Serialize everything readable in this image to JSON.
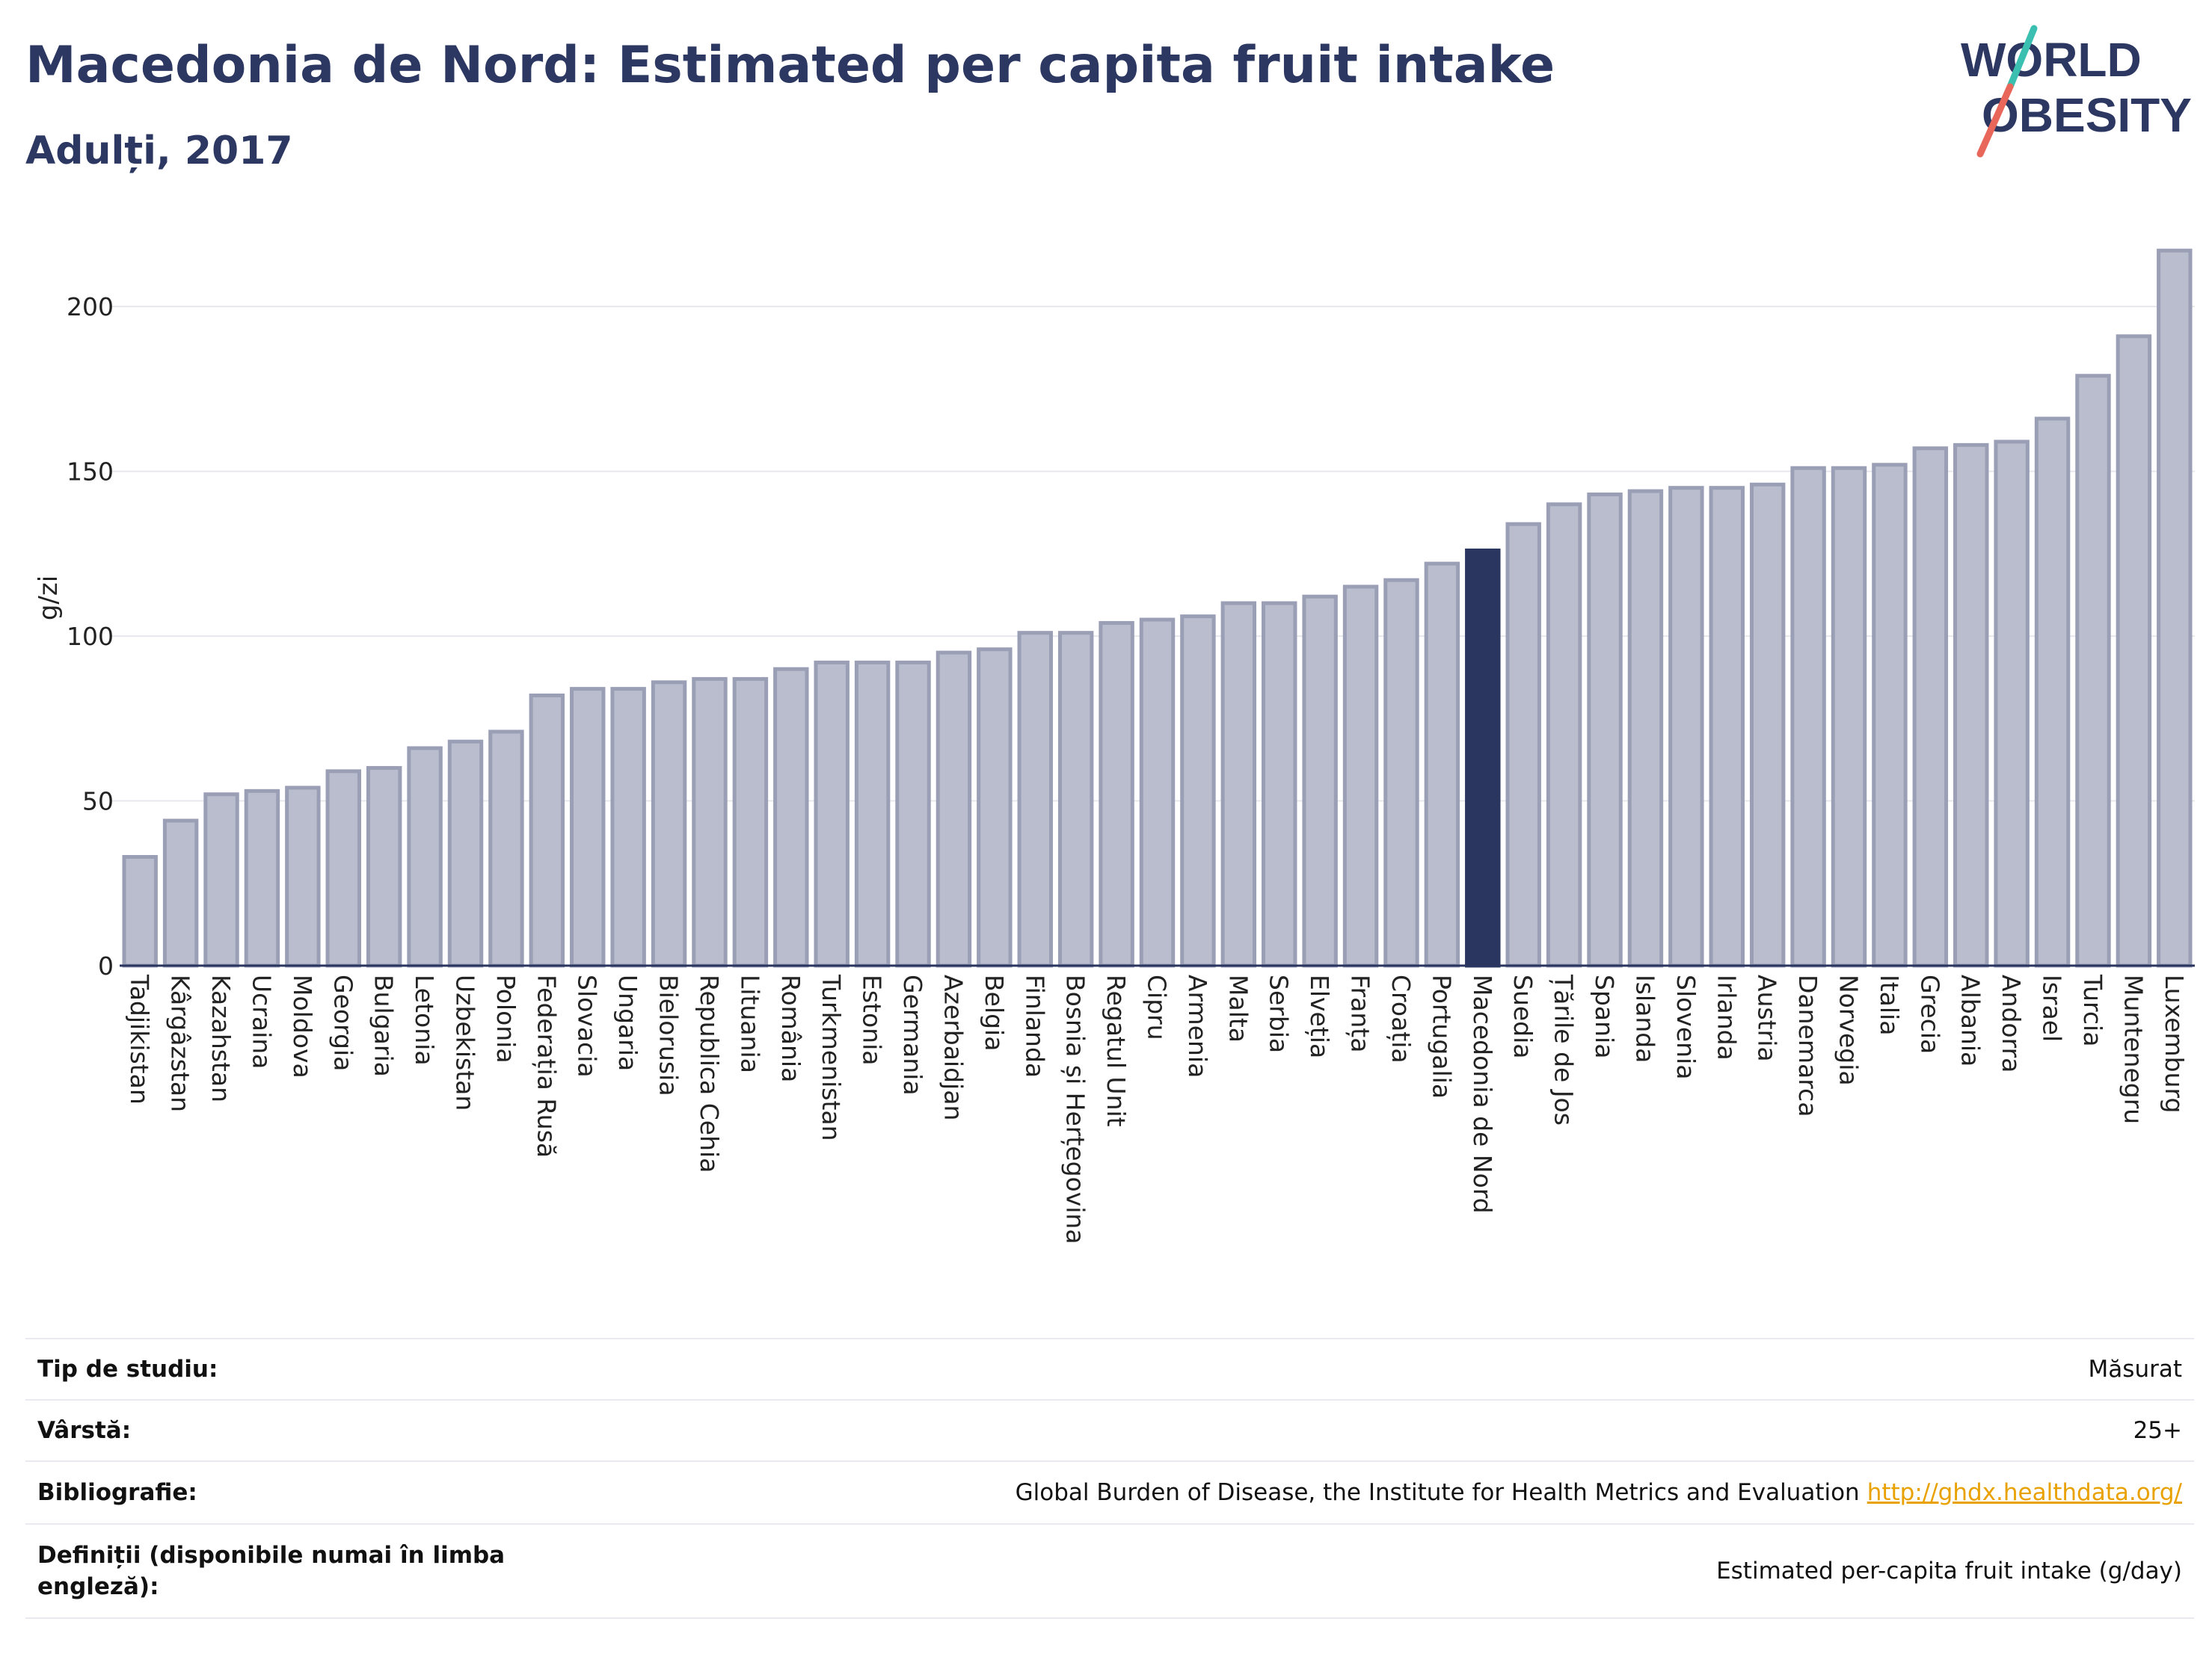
{
  "header": {
    "title": "Macedonia de Nord: Estimated per capita fruit intake",
    "subtitle": "Adulți, 2017"
  },
  "logo": {
    "line1": "WORLD",
    "line2": "OBESITY"
  },
  "colors": {
    "bar": "#b9bdcd",
    "bar_stroke": "#9a9fb6",
    "highlight": "#2a3560",
    "title": "#2c3762",
    "logo_teal": "#3bbfb0",
    "logo_coral": "#e8675a"
  },
  "chart_data": {
    "type": "bar",
    "ylabel": "g/zi",
    "ylim": [
      0,
      220
    ],
    "yticks": [
      0,
      50,
      100,
      150,
      200
    ],
    "grid": true,
    "highlight": "Macedonia de Nord",
    "categories": [
      "Tadjikistan",
      "Kârgâzstan",
      "Kazahstan",
      "Ucraina",
      "Moldova",
      "Georgia",
      "Bulgaria",
      "Letonia",
      "Uzbekistan",
      "Polonia",
      "Federația Rusă",
      "Slovacia",
      "Ungaria",
      "Bielorusia",
      "Republica Cehia",
      "Lituania",
      "România",
      "Turkmenistan",
      "Estonia",
      "Germania",
      "Azerbaidjan",
      "Belgia",
      "Finlanda",
      "Bosnia și Herțegovina",
      "Regatul Unit",
      "Cipru",
      "Armenia",
      "Malta",
      "Serbia",
      "Elveția",
      "Franța",
      "Croația",
      "Portugalia",
      "Macedonia de Nord",
      "Suedia",
      "Țările de Jos",
      "Spania",
      "Islanda",
      "Slovenia",
      "Irlanda",
      "Austria",
      "Danemarca",
      "Norvegia",
      "Italia",
      "Grecia",
      "Albania",
      "Andorra",
      "Israel",
      "Turcia",
      "Muntenegru",
      "Luxemburg"
    ],
    "values": [
      33,
      44,
      52,
      53,
      54,
      59,
      60,
      66,
      68,
      71,
      82,
      84,
      84,
      86,
      87,
      87,
      90,
      92,
      92,
      92,
      95,
      96,
      101,
      101,
      104,
      105,
      106,
      110,
      110,
      112,
      115,
      117,
      122,
      126,
      134,
      140,
      143,
      144,
      145,
      145,
      146,
      151,
      151,
      152,
      157,
      158,
      159,
      166,
      179,
      191,
      217
    ]
  },
  "info": {
    "rows": [
      {
        "label": "Tip de studiu:",
        "value": "Măsurat"
      },
      {
        "label": "Vârstă:",
        "value": "25+"
      },
      {
        "label": "Bibliografie:",
        "value": "Global Burden of Disease, the Institute for Health Metrics and Evaluation",
        "link": "http://ghdx.healthdata.org/"
      },
      {
        "label": "Definiții (disponibile numai în limba engleză):",
        "value": "Estimated per-capita fruit intake (g/day)"
      }
    ]
  }
}
